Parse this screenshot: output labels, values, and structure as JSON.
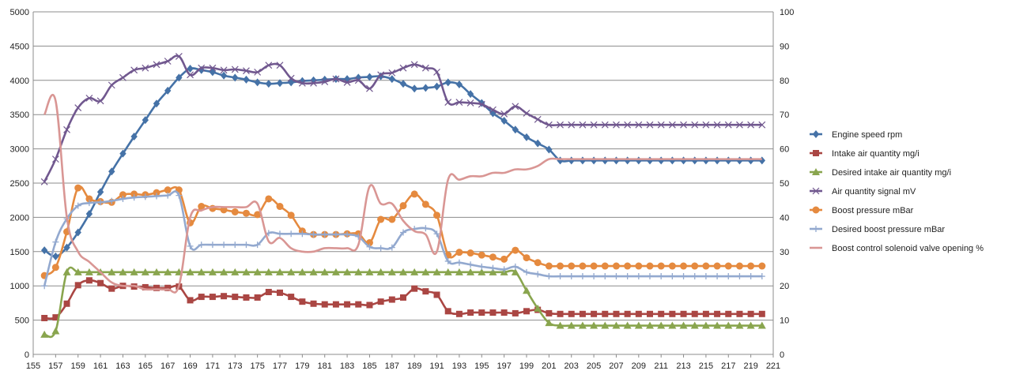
{
  "chart_data": {
    "type": "line",
    "title": "",
    "xlabel": "",
    "ylabel": "",
    "x": [
      156,
      157,
      158,
      159,
      160,
      161,
      162,
      163,
      164,
      165,
      166,
      167,
      168,
      169,
      170,
      171,
      172,
      173,
      174,
      175,
      176,
      177,
      178,
      179,
      180,
      181,
      182,
      183,
      184,
      185,
      186,
      187,
      188,
      189,
      190,
      191,
      192,
      193,
      194,
      195,
      196,
      197,
      198,
      199,
      200,
      201,
      202,
      203,
      204,
      205,
      206,
      207,
      208,
      209,
      210,
      211,
      212,
      213,
      214,
      215,
      216,
      217,
      218,
      219,
      220
    ],
    "x_ticks": [
      155,
      157,
      159,
      161,
      163,
      165,
      167,
      169,
      171,
      173,
      175,
      177,
      179,
      181,
      183,
      185,
      187,
      189,
      191,
      193,
      195,
      197,
      199,
      201,
      203,
      205,
      207,
      209,
      211,
      213,
      215,
      217,
      219,
      221
    ],
    "xlim": [
      155,
      221
    ],
    "ylim": [
      0,
      5000
    ],
    "y_ticks": [
      0,
      500,
      1000,
      1500,
      2000,
      2500,
      3000,
      3500,
      4000,
      4500,
      5000
    ],
    "y2lim": [
      0,
      100
    ],
    "y2_ticks": [
      0,
      10,
      20,
      30,
      40,
      50,
      60,
      70,
      80,
      90,
      100
    ],
    "grid": true,
    "legend_position": "right",
    "series": [
      {
        "name": "Engine speed rpm",
        "color": "#4572A7",
        "marker": "diamond",
        "axis": "left",
        "values": [
          1520,
          1430,
          1560,
          1780,
          2050,
          2370,
          2670,
          2930,
          3180,
          3420,
          3660,
          3850,
          4040,
          4170,
          4150,
          4120,
          4070,
          4040,
          4010,
          3970,
          3950,
          3960,
          3970,
          3990,
          4000,
          4010,
          4020,
          4020,
          4040,
          4050,
          4060,
          4020,
          3950,
          3880,
          3890,
          3910,
          3970,
          3940,
          3800,
          3670,
          3520,
          3410,
          3280,
          3170,
          3080,
          2990,
          2830,
          2830,
          2830,
          2830,
          2830,
          2830,
          2830,
          2830,
          2830,
          2830,
          2830,
          2830,
          2830,
          2830,
          2830,
          2830,
          2830,
          2830,
          2830
        ]
      },
      {
        "name": "Intake air quantity mg/i",
        "color": "#AA4643",
        "marker": "square",
        "axis": "left",
        "values": [
          530,
          540,
          740,
          1010,
          1080,
          1040,
          960,
          1000,
          990,
          980,
          970,
          970,
          990,
          790,
          840,
          840,
          850,
          840,
          830,
          830,
          910,
          900,
          840,
          770,
          740,
          730,
          730,
          730,
          730,
          720,
          770,
          800,
          830,
          960,
          920,
          870,
          630,
          590,
          610,
          610,
          610,
          610,
          600,
          630,
          650,
          600,
          590,
          590,
          590,
          590,
          590,
          590,
          590,
          590,
          590,
          590,
          590,
          590,
          590,
          590,
          590,
          590,
          590,
          590,
          590
        ]
      },
      {
        "name": "Desired intake air quantity mg/i",
        "color": "#89A54E",
        "marker": "triangle",
        "axis": "left",
        "values": [
          290,
          340,
          1200,
          1200,
          1200,
          1200,
          1200,
          1200,
          1200,
          1200,
          1200,
          1200,
          1200,
          1200,
          1200,
          1200,
          1200,
          1200,
          1200,
          1200,
          1200,
          1200,
          1200,
          1200,
          1200,
          1200,
          1200,
          1200,
          1200,
          1200,
          1200,
          1200,
          1200,
          1200,
          1200,
          1200,
          1200,
          1200,
          1200,
          1200,
          1200,
          1200,
          1200,
          930,
          670,
          460,
          420,
          420,
          420,
          420,
          420,
          420,
          420,
          420,
          420,
          420,
          420,
          420,
          420,
          420,
          420,
          420,
          420,
          420,
          420
        ]
      },
      {
        "name": "Air quantity signal mV",
        "color": "#71588F",
        "marker": "x",
        "axis": "left",
        "values": [
          2520,
          2850,
          3280,
          3600,
          3740,
          3700,
          3930,
          4040,
          4150,
          4180,
          4230,
          4280,
          4350,
          4080,
          4180,
          4180,
          4150,
          4160,
          4140,
          4120,
          4220,
          4220,
          4030,
          3960,
          3960,
          3980,
          4020,
          3970,
          4000,
          3880,
          4080,
          4110,
          4180,
          4230,
          4180,
          4120,
          3680,
          3680,
          3670,
          3650,
          3570,
          3510,
          3620,
          3520,
          3430,
          3350,
          3350,
          3350,
          3350,
          3350,
          3350,
          3350,
          3350,
          3350,
          3350,
          3350,
          3350,
          3350,
          3350,
          3350,
          3350,
          3350,
          3350,
          3350,
          3350
        ]
      },
      {
        "name": "Boost pressure mBar",
        "color": "#E58A3F",
        "marker": "circle",
        "axis": "left",
        "values": [
          1150,
          1270,
          1790,
          2430,
          2270,
          2230,
          2220,
          2330,
          2340,
          2330,
          2360,
          2400,
          2400,
          1920,
          2160,
          2130,
          2110,
          2080,
          2060,
          2040,
          2270,
          2160,
          2030,
          1800,
          1750,
          1750,
          1750,
          1760,
          1760,
          1630,
          1970,
          1970,
          2170,
          2340,
          2190,
          2030,
          1450,
          1490,
          1480,
          1450,
          1420,
          1390,
          1520,
          1410,
          1340,
          1290,
          1290,
          1290,
          1290,
          1290,
          1290,
          1290,
          1290,
          1290,
          1290,
          1290,
          1290,
          1290,
          1290,
          1290,
          1290,
          1290,
          1290,
          1290,
          1290
        ]
      },
      {
        "name": "Desired boost pressure mBar",
        "color": "#93A9CF",
        "marker": "plus",
        "axis": "left",
        "values": [
          1000,
          1640,
          1980,
          2170,
          2210,
          2220,
          2240,
          2270,
          2290,
          2300,
          2310,
          2320,
          2320,
          1580,
          1600,
          1600,
          1600,
          1600,
          1600,
          1600,
          1770,
          1760,
          1760,
          1760,
          1750,
          1750,
          1750,
          1750,
          1720,
          1570,
          1550,
          1560,
          1780,
          1830,
          1840,
          1760,
          1360,
          1340,
          1310,
          1280,
          1260,
          1240,
          1280,
          1200,
          1170,
          1140,
          1140,
          1140,
          1140,
          1140,
          1140,
          1140,
          1140,
          1140,
          1140,
          1140,
          1140,
          1140,
          1140,
          1140,
          1140,
          1140,
          1140,
          1140,
          1140
        ]
      },
      {
        "name": "Boost control solenoid valve opening %",
        "color": "#D99694",
        "marker": "none",
        "axis": "right",
        "values": [
          70,
          74,
          40,
          30,
          27,
          24,
          21,
          20,
          20,
          19,
          19,
          19,
          20,
          40,
          42,
          43,
          43,
          43,
          43,
          44,
          33,
          34,
          31,
          30,
          30,
          31,
          31,
          31,
          32,
          49,
          44,
          44,
          39,
          36,
          35,
          30,
          51,
          51,
          52,
          52,
          53,
          53,
          54,
          54,
          55,
          57,
          57,
          57,
          57,
          57,
          57,
          57,
          57,
          57,
          57,
          57,
          57,
          57,
          57,
          57,
          57,
          57,
          57,
          57,
          57
        ]
      }
    ]
  }
}
